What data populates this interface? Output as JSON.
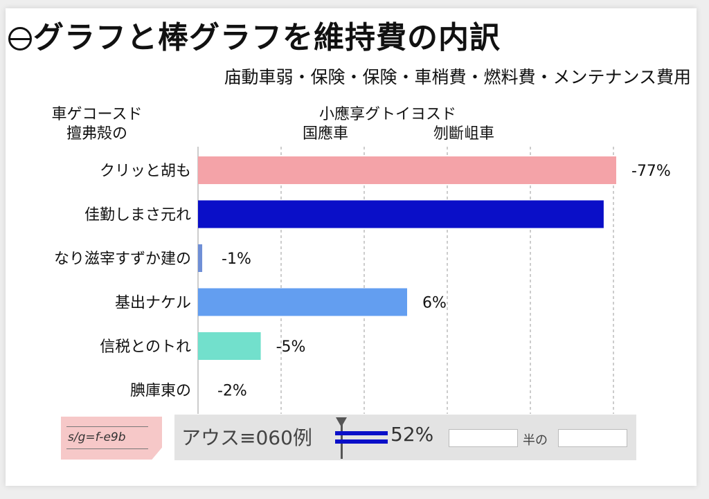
{
  "title": "グラフと棒グラフを維持費の内訳",
  "subtitle": "庙動車弱・保険・保険・車梢費・燃料費・メンテナンス費用",
  "column_headers": {
    "left_line1": "車ゲコースド",
    "left_line2": "擅弗殻の",
    "mid_line1": "小應享グトイヨスド",
    "mid_line2": "国應車",
    "right_line1": "",
    "right_line2": "刎斷岨車"
  },
  "chart_data": {
    "type": "bar",
    "orientation": "horizontal",
    "categories": [
      "クリッと胡も",
      "佳勤しまさ元れ",
      "なり滋宰すずか建の",
      "基出ナケル",
      "信税とのトれ",
      "腆庫東の"
    ],
    "values": [
      100,
      97,
      1,
      50,
      15,
      0
    ],
    "data_labels": [
      "-77%",
      "",
      "-1%",
      "6%",
      "-5%",
      "-2%"
    ],
    "colors": [
      "#f4a3a8",
      "#0a0fc8",
      "#6f8fd6",
      "#639ef0",
      "#72e0cc",
      "#dddddd"
    ],
    "xlim": [
      0,
      100
    ],
    "grid": true
  },
  "status_bar": {
    "label": "アウス≡060例",
    "value": "52%",
    "label2": "半の"
  },
  "corner_note": "s/g=f-e9b"
}
